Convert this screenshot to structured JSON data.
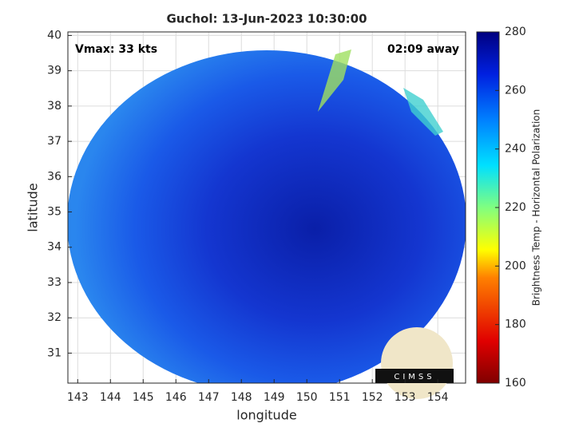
{
  "chart_data": {
    "type": "map",
    "title": "Guchol: 13-Jun-2023 10:30:00",
    "xlabel": "longitude",
    "ylabel": "latitude",
    "annotations": [
      "Vmax: 33 kts",
      "02:09 away"
    ],
    "logo": "CIMSS",
    "xlim": [
      142.7,
      154.85
    ],
    "xticks": [
      143,
      144,
      145,
      146,
      147,
      148,
      149,
      150,
      151,
      152,
      153,
      154
    ],
    "ylim": [
      30.15,
      40.1
    ],
    "yticks": [
      31,
      32,
      33,
      34,
      35,
      36,
      37,
      38,
      39,
      40
    ],
    "grid": true,
    "colorbar": {
      "label": "Brightness Temp - Horizontal Polarization",
      "lim": [
        160,
        280
      ],
      "ticks": [
        160,
        180,
        200,
        220,
        240,
        260,
        280
      ]
    }
  }
}
